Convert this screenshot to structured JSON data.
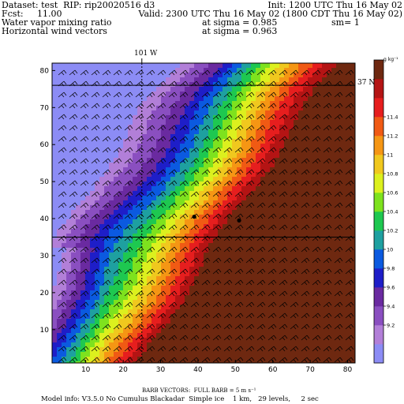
{
  "header": {
    "dataset_line": "Dataset: test  RIP: rip20020516 d3",
    "init_line": "Init: 1200 UTC Thu 16 May 02",
    "fcst_line": "Fcst:     11.00",
    "valid_line": "Valid: 2300 UTC Thu 16 May 02 (1800 CDT Thu 16 May 02)",
    "field1_name": "Water vapor mixing ratio",
    "field1_level": "at sigma = 0.985",
    "field1_extra": "sm= 1",
    "field2_name": "Horizontal wind vectors",
    "field2_level": "at sigma = 0.963"
  },
  "map_labels": {
    "meridian": "101 W",
    "parallel": "37 N"
  },
  "colorbar": {
    "units": "g kg⁻¹",
    "levels": [
      "9.2",
      "9.4",
      "9.6",
      "9.8",
      "10",
      "10.2",
      "10.4",
      "10.6",
      "10.8",
      "11",
      "11.2",
      "11.4"
    ],
    "colors": [
      "#8c8cf5",
      "#b27fd8",
      "#8a4fc0",
      "#6a2aa0",
      "#1e1ec8",
      "#0b5ae0",
      "#1ea0a0",
      "#1ec850",
      "#7ee21e",
      "#dcf01e",
      "#f0c81e",
      "#f59614",
      "#f05a14",
      "#e61e1e",
      "#b41414",
      "#6e2810"
    ]
  },
  "footer": {
    "barb_line": "BARB VECTORS:  FULL BARB = 5 m s⁻¹",
    "model_line": "Model info: V3.5.0 No Cumulus Blackadar  Simple ice    1 km,   29 levels,     2 sec"
  },
  "chart_data": {
    "type": "heatmap",
    "title": "Water vapor mixing ratio",
    "units": "g kg-1",
    "x_ticks": [
      10,
      20,
      30,
      40,
      50,
      60,
      70,
      80
    ],
    "y_ticks": [
      10,
      20,
      30,
      40,
      50,
      60,
      70,
      80
    ],
    "xlim": [
      1,
      82
    ],
    "ylim": [
      1,
      82
    ],
    "contour_levels": [
      9.2,
      9.4,
      9.6,
      9.8,
      10,
      10.2,
      10.4,
      10.6,
      10.8,
      11,
      11.2,
      11.4
    ],
    "gradient": "moisture increases from west/northwest (about 9.2) to southeast (above 11.4)",
    "markers": [
      {
        "x": 39,
        "y": 40.5
      },
      {
        "x": 51,
        "y": 39.5
      }
    ],
    "reference_lines": {
      "vertical_x": 25,
      "horizontal_y": [
        35,
        76
      ]
    },
    "wind_barbs": true
  }
}
